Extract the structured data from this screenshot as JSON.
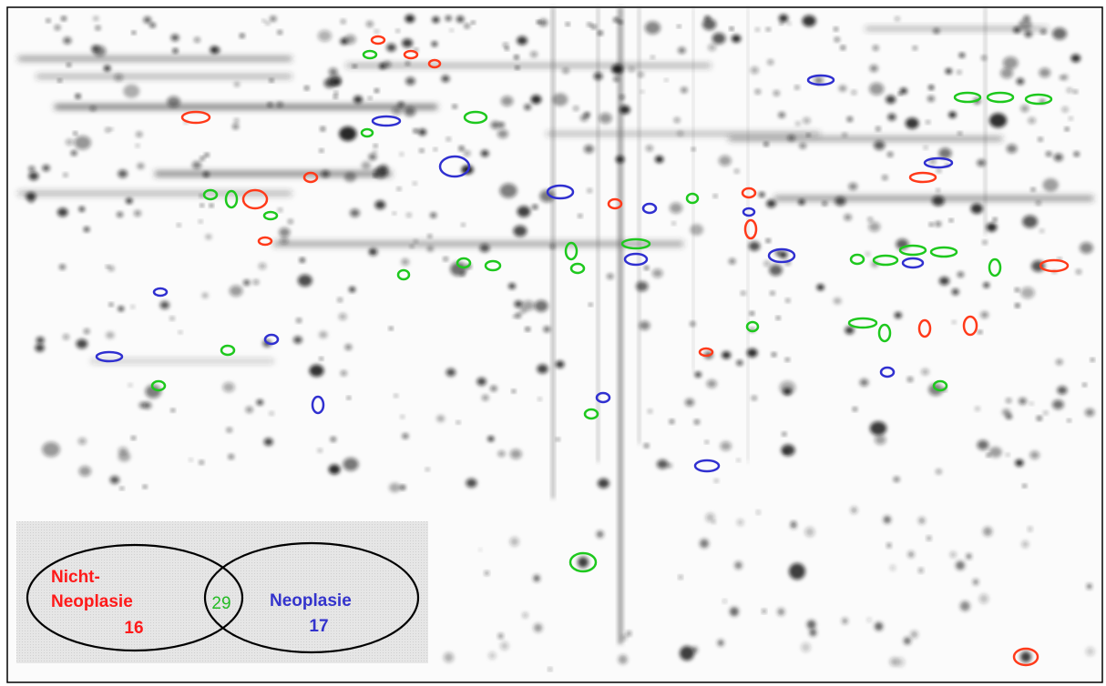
{
  "venn": {
    "sets": [
      {
        "label": [
          "Nicht-",
          "Neoplasie"
        ],
        "count": 16
      },
      {
        "label": [
          "Neoplasie"
        ],
        "count": 17
      }
    ],
    "intersection": {
      "count": 29
    }
  }
}
